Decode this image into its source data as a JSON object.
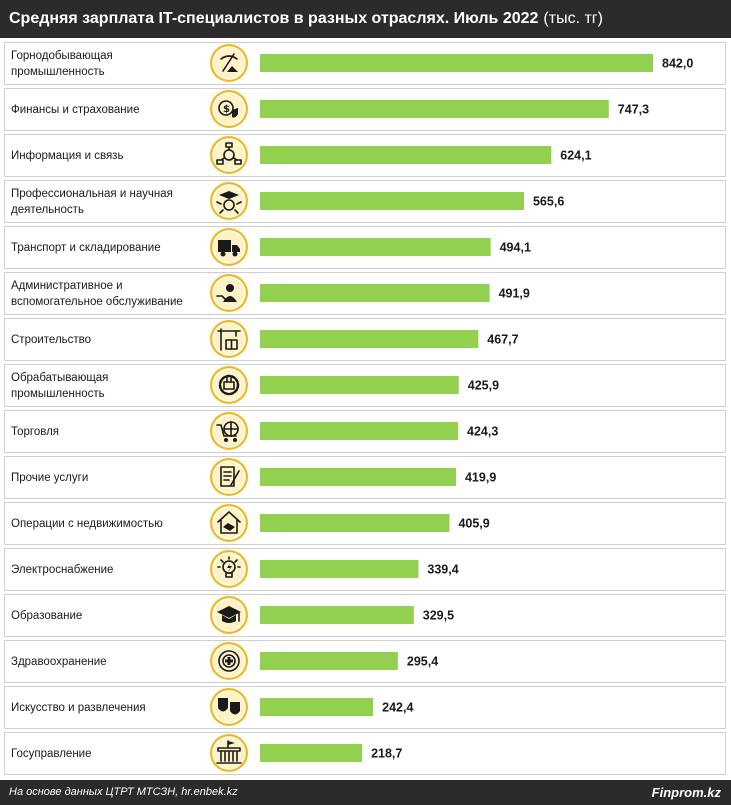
{
  "header": {
    "title": "Средняя зарплата IT-специалистов в разных отраслях. Июль 2022",
    "unit": "(тыс. тг)"
  },
  "footer": {
    "source": "На основе данных ЦТРТ МТСЗН, hr.enbek.kz",
    "brand": "Finprom.kz"
  },
  "colors": {
    "bar": "#92d050",
    "header_bg": "#2b2b2b",
    "icon_ring": "#f2b81b",
    "icon_fill": "#fff2c6",
    "icon_glyph": "#1a1a1a",
    "row_border": "#cfcfcf"
  },
  "chart_data": {
    "type": "bar",
    "orientation": "horizontal",
    "categories": [
      [
        "Горнодобывающая",
        "промышленность"
      ],
      [
        "Финансы и страхование"
      ],
      [
        "Информация и связь"
      ],
      [
        "Профессиональная и научная",
        "деятельность"
      ],
      [
        "Транспорт и складирование"
      ],
      [
        "Административное и",
        "вспомогательное обслуживание"
      ],
      [
        "Строительство"
      ],
      [
        "Обрабатывающая",
        "промышленность"
      ],
      [
        "Торговля"
      ],
      [
        "Прочие услуги"
      ],
      [
        "Операции с недвижимостью"
      ],
      [
        "Электроснабжение"
      ],
      [
        "Образование"
      ],
      [
        "Здравоохранение"
      ],
      [
        "Искусство и развлечения"
      ],
      [
        "Госуправление"
      ]
    ],
    "values": [
      842.0,
      747.3,
      624.1,
      565.6,
      494.1,
      491.9,
      467.7,
      425.9,
      424.3,
      419.9,
      405.9,
      339.4,
      329.5,
      295.4,
      242.4,
      218.7
    ],
    "value_labels": [
      "842,0",
      "747,3",
      "624,1",
      "565,6",
      "494,1",
      "491,9",
      "467,7",
      "425,9",
      "424,3",
      "419,9",
      "405,9",
      "339,4",
      "329,5",
      "295,4",
      "242,4",
      "218,7"
    ],
    "icons": [
      "mining-icon",
      "finance-icon",
      "network-icon",
      "science-icon",
      "truck-icon",
      "admin-icon",
      "construction-icon",
      "factory-icon",
      "shopping-cart-icon",
      "document-icon",
      "real-estate-icon",
      "lightbulb-icon",
      "graduation-cap-icon",
      "medical-icon",
      "theater-masks-icon",
      "government-icon"
    ],
    "xlim": [
      0,
      842.0
    ],
    "grid": false,
    "legend": "none"
  }
}
